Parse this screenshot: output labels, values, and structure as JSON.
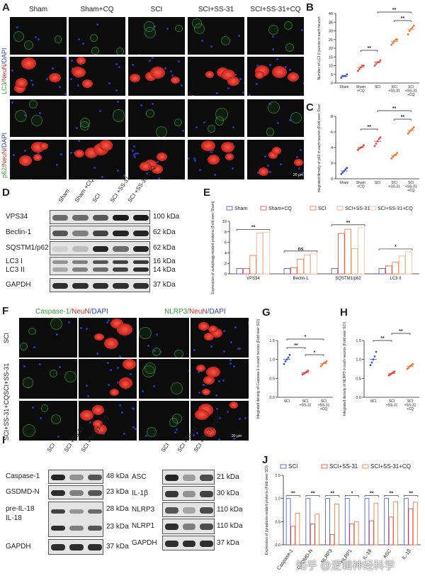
{
  "panel_letters": {
    "a": "A",
    "b": "B",
    "c": "C",
    "d": "D",
    "e": "E",
    "f": "F",
    "g": "G",
    "h": "H",
    "i": "I",
    "j": "J"
  },
  "panelA": {
    "groups": [
      "Sham",
      "Sham+CQ",
      "SCI",
      "SCI+SS-31",
      "SCI+SS-31+CQ"
    ],
    "row1_label_parts": [
      "LC3/",
      "NeuN",
      "/DAPI"
    ],
    "row2_label_parts": [
      "p62/",
      "NeuN",
      "/DAPI"
    ],
    "scale": "20 μm"
  },
  "panelD": {
    "lanes": [
      "Sham",
      "Sham +CQ",
      "SCI",
      "SCI +SS-31",
      "SCI +SS-31 +CQ"
    ],
    "rows": [
      {
        "label": "VPS34",
        "kda": "100 kDa"
      },
      {
        "label": "Beclin-1",
        "kda": "62 kDa"
      },
      {
        "label": "SQSTM1/p62",
        "kda": "62 kDa"
      },
      {
        "label": "LC3 I",
        "kda": "16 kDa"
      },
      {
        "label": "LC3 II",
        "kda": "14 kDa"
      },
      {
        "label": "GAPDH",
        "kda": "37 kDa"
      }
    ]
  },
  "panelF": {
    "title_left_parts": [
      "Caspase-1/",
      "NeuN",
      "/DAPI"
    ],
    "title_right_parts": [
      "NLRP3/",
      "NeuN",
      "/DAPI"
    ],
    "rows": [
      "SCI",
      "SCI+SS-31",
      "SCI+SS-31+CQ"
    ],
    "scale": "20 μm"
  },
  "panelI": {
    "lanes": [
      "SCI",
      "SCI +SS-31",
      "SCI +SS-31 +CQ"
    ],
    "left_rows": [
      {
        "label": "Caspase-1",
        "kda": "48 kDa"
      },
      {
        "label": "GSDMD-N",
        "kda": "23 kDa"
      },
      {
        "label": "pre-IL-18",
        "kda": "28 kDa"
      },
      {
        "label": "IL-18",
        "kda": "23 kDa"
      },
      {
        "label": "GAPDH",
        "kda": "37 kDa"
      }
    ],
    "right_rows": [
      {
        "label": "ASC",
        "kda": "21 kDa"
      },
      {
        "label": "IL-1β",
        "kda": "30 kDa"
      },
      {
        "label": "NLRP3",
        "kda": "110 kDa"
      },
      {
        "label": "NLRP1",
        "kda": "110 kDa"
      },
      {
        "label": "GAPDH",
        "kda": "37 kDa"
      }
    ]
  },
  "watermark": "知乎 @逻辑神经科学",
  "colors": {
    "blue": "#3b4fd8",
    "orange": "#f07030",
    "lightorange": "#f5b48a",
    "red": "#e8413a",
    "green": "#2f9e3a",
    "dark": "#222222"
  },
  "chart_data": [
    {
      "id": "B",
      "type": "scatter",
      "ylabel": "Number of LC3 II puncta in each neuron",
      "categories": [
        "Sham",
        "Sham +CQ",
        "SCI",
        "SCI +SS-31",
        "SCI +SS-31 +CQ"
      ],
      "ylim": [
        0,
        40
      ],
      "yticks": [
        0,
        5,
        10,
        15,
        20,
        25,
        30,
        35,
        40
      ],
      "values": [
        [
          3,
          4,
          4,
          4,
          5
        ],
        [
          7,
          8,
          9,
          10,
          10
        ],
        [
          10,
          11,
          12,
          12,
          13
        ],
        [
          22,
          23,
          24,
          25,
          25
        ],
        [
          28,
          30,
          31,
          32,
          33
        ]
      ],
      "means": [
        4,
        9,
        12,
        24,
        31
      ],
      "significance": [
        "**",
        "**",
        "**"
      ]
    },
    {
      "id": "C",
      "type": "scatter",
      "ylabel": "Integrated density of p62 in each neuron (Fold over Sham)",
      "categories": [
        "Sham",
        "Sham +CQ",
        "SCI",
        "SCI +SS-31",
        "SCI +SS-31 +CQ"
      ],
      "ylim": [
        0,
        8
      ],
      "yticks": [
        0,
        2,
        4,
        6,
        8
      ],
      "values": [
        [
          0.6,
          0.8,
          1,
          1.2,
          1.4
        ],
        [
          3.7,
          3.9,
          4,
          4.1,
          4.3
        ],
        [
          4.2,
          4.5,
          4.8,
          5.1,
          5.3
        ],
        [
          2.6,
          2.8,
          3,
          3.1,
          3.3
        ],
        [
          5.8,
          6,
          6.2,
          6.4,
          6.6
        ]
      ],
      "means": [
        1,
        4,
        4.8,
        3,
        6.2
      ],
      "significance": [
        "**",
        "**",
        "**"
      ]
    },
    {
      "id": "E",
      "type": "bar",
      "ylabel": "Expression of autophagy-related proteins (Fold over Sham)",
      "categories": [
        "VPS34",
        "Beclin-1",
        "SQSTM1/p62",
        "LC3 II"
      ],
      "ylim": [
        0,
        10
      ],
      "yticks": [
        0,
        2,
        4,
        6,
        8,
        10
      ],
      "series": [
        {
          "name": "Sham",
          "values": [
            1,
            1,
            1,
            1
          ]
        },
        {
          "name": "Sham+CQ",
          "values": [
            1,
            1.2,
            7.7,
            1.5
          ]
        },
        {
          "name": "SCI",
          "values": [
            3.5,
            2.8,
            8.5,
            2.2
          ]
        },
        {
          "name": "SCI+SS-31",
          "values": [
            7.8,
            3.6,
            4.8,
            3.4
          ]
        },
        {
          "name": "SCI+SS-31+CQ",
          "values": [
            7.9,
            3.8,
            8.8,
            4.2
          ]
        }
      ],
      "significance": [
        "**",
        "ns",
        "**",
        "*"
      ]
    },
    {
      "id": "G",
      "type": "scatter",
      "ylabel": "Integrated density of Caspase-1 in each neuron (Fold over SCI)",
      "categories": [
        "SCI",
        "SCI +SS-31",
        "SCI +SS-31 +CQ"
      ],
      "ylim": [
        0.0,
        1.5
      ],
      "yticks": [
        0.0,
        0.5,
        1.0,
        1.5
      ],
      "values": [
        [
          0.88,
          0.95,
          1.0,
          1.05,
          1.12
        ],
        [
          0.6,
          0.62,
          0.65,
          0.68,
          0.7
        ],
        [
          0.82,
          0.86,
          0.9,
          0.92,
          0.95
        ]
      ],
      "means": [
        1.0,
        0.65,
        0.89
      ],
      "significance": [
        "**",
        "*",
        "*"
      ]
    },
    {
      "id": "H",
      "type": "scatter",
      "ylabel": "Integrated density of NLRP3 in each neuron (Fold over SCI)",
      "categories": [
        "SCI",
        "SCI +SS-31",
        "SCI +SS-31 +CQ"
      ],
      "ylim": [
        0.0,
        1.5
      ],
      "yticks": [
        0.0,
        0.5,
        1.0,
        1.5
      ],
      "values": [
        [
          0.85,
          0.92,
          1.0,
          1.08,
          1.2
        ],
        [
          0.58,
          0.6,
          0.63,
          0.66,
          0.68
        ],
        [
          0.75,
          0.78,
          0.82,
          0.85,
          0.88
        ]
      ],
      "means": [
        1.0,
        0.63,
        0.82
      ],
      "significance": [
        "**",
        "**"
      ]
    },
    {
      "id": "J",
      "type": "bar",
      "ylabel": "Expression of pyroptosis-related proteins (Fold over SCI)",
      "categories": [
        "Caspase-1",
        "GSDMD-N",
        "NLRP3",
        "NLRP1",
        "IL-18",
        "ASC",
        "IL-1β"
      ],
      "ylim": [
        0.0,
        1.5
      ],
      "yticks": [
        0.0,
        0.5,
        1.0,
        1.5
      ],
      "series": [
        {
          "name": "SCI",
          "values": [
            1,
            1,
            1,
            1,
            1,
            1,
            1
          ]
        },
        {
          "name": "SCI+SS-31",
          "values": [
            0.4,
            0.45,
            0.22,
            0.45,
            0.52,
            0.6,
            0.78
          ]
        },
        {
          "name": "SCI+SS-31+CQ",
          "values": [
            0.68,
            0.66,
            0.88,
            0.5,
            0.9,
            0.93,
            0.92
          ]
        }
      ],
      "significance": [
        "**",
        "**",
        "**",
        "*",
        "**",
        "**",
        "**"
      ]
    }
  ]
}
